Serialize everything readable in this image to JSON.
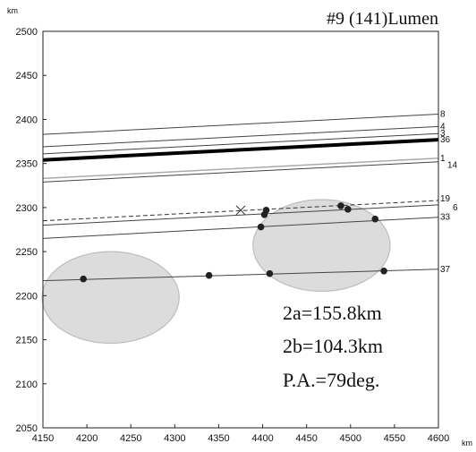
{
  "chart_data": {
    "type": "scatter",
    "title": "#9 (141)Lumen",
    "xlabel": "km",
    "ylabel": "km",
    "xlim": [
      4150,
      4600
    ],
    "ylim": [
      2050,
      2500
    ],
    "x_ticks": [
      4150,
      4200,
      4250,
      4300,
      4350,
      4400,
      4450,
      4500,
      4550,
      4600
    ],
    "y_ticks": [
      2050,
      2100,
      2150,
      2200,
      2250,
      2300,
      2350,
      2400,
      2450,
      2500
    ],
    "grid": false,
    "annotations": [
      "2a=155.8km",
      "2b=104.3km",
      "P.A.=79deg."
    ],
    "chords": [
      {
        "label": "8",
        "y_left": 2383,
        "y_right": 2406,
        "width": 1,
        "color": "#444444"
      },
      {
        "label": "4",
        "y_left": 2369,
        "y_right": 2392,
        "width": 1,
        "color": "#444444"
      },
      {
        "label": "3",
        "y_left": 2361,
        "y_right": 2384,
        "width": 1,
        "color": "#444444"
      },
      {
        "label": "36",
        "y_left": 2354,
        "y_right": 2377,
        "width": 4,
        "color": "#000000"
      },
      {
        "label": "1",
        "y_left": 2333,
        "y_right": 2356,
        "width": 1.5,
        "color": "#aaaaaa"
      },
      {
        "label": "14",
        "y_left": 2329,
        "y_right": 2352,
        "width": 1,
        "color": "#444444"
      },
      {
        "label": "19",
        "y_left": 2285,
        "y_right": 2308,
        "width": 1,
        "color": "#333333",
        "dashed": true
      },
      {
        "label": "6",
        "y_left": 2280,
        "y_right": 2303,
        "width": 1,
        "color": "#444444"
      },
      {
        "label": "33",
        "y_left": 2265,
        "y_right": 2289,
        "width": 1,
        "color": "#444444"
      },
      {
        "label": "37",
        "y_left": 2217,
        "y_right": 2230,
        "width": 1,
        "color": "#444444"
      }
    ],
    "ellipses": [
      {
        "cx": 4227,
        "cy": 2198,
        "rx": 78,
        "ry": 52
      },
      {
        "cx": 4467,
        "cy": 2257,
        "rx": 78,
        "ry": 52
      }
    ],
    "points": [
      {
        "x": 4196,
        "y": 2219
      },
      {
        "x": 4339,
        "y": 2223
      },
      {
        "x": 4408,
        "y": 2225
      },
      {
        "x": 4538,
        "y": 2228
      },
      {
        "x": 4398,
        "y": 2278
      },
      {
        "x": 4402,
        "y": 2292
      },
      {
        "x": 4404,
        "y": 2297
      },
      {
        "x": 4489,
        "y": 2302
      },
      {
        "x": 4497,
        "y": 2298
      },
      {
        "x": 4528,
        "y": 2287
      }
    ],
    "cross_marker": {
      "x": 4375,
      "y": 2297
    }
  }
}
